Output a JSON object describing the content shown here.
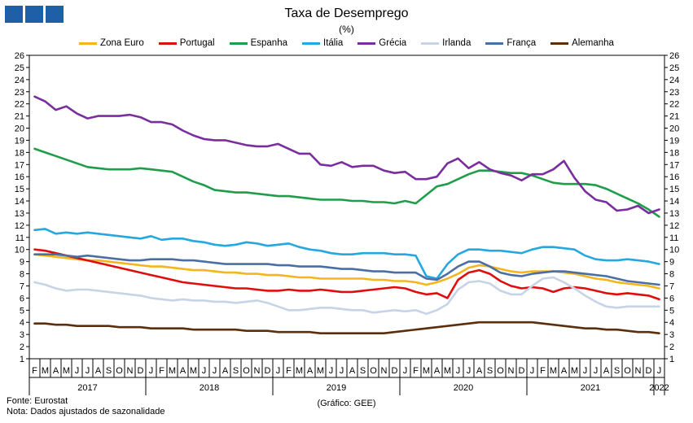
{
  "header": {
    "title": "Taxa de Desemprego",
    "subtitle": "(%)",
    "logo_color": "#1f5fa8"
  },
  "footer": {
    "source": "Fonte: Eurostat",
    "note": "Nota: Dados ajustados de sazonalidade",
    "credit": "(Gráfico: GEE)"
  },
  "chart_data": {
    "type": "line",
    "title": "Taxa de Desemprego",
    "subtitle": "(%)",
    "ylim": [
      1,
      26
    ],
    "yticks": [
      1,
      2,
      3,
      4,
      5,
      6,
      7,
      8,
      9,
      10,
      11,
      12,
      13,
      14,
      15,
      16,
      17,
      18,
      19,
      20,
      21,
      22,
      23,
      24,
      25,
      26
    ],
    "grid": false,
    "legend": "top",
    "month_labels": [
      "F",
      "M",
      "A",
      "M",
      "J",
      "J",
      "A",
      "S",
      "O",
      "N",
      "D",
      "J",
      "F",
      "M",
      "A",
      "M",
      "J",
      "J",
      "A",
      "S",
      "O",
      "N",
      "D",
      "J",
      "F",
      "M",
      "A",
      "M",
      "J",
      "J",
      "A",
      "S",
      "O",
      "N",
      "D",
      "J",
      "F",
      "M",
      "A",
      "M",
      "J",
      "J",
      "A",
      "S",
      "O",
      "N",
      "D",
      "J",
      "F",
      "M",
      "A",
      "M",
      "J",
      "J",
      "A",
      "S",
      "O",
      "N",
      "D",
      "J"
    ],
    "years": [
      {
        "label": "2017",
        "start": 0,
        "end": 10
      },
      {
        "label": "2018",
        "start": 11,
        "end": 22
      },
      {
        "label": "2019",
        "start": 23,
        "end": 34
      },
      {
        "label": "2020",
        "start": 35,
        "end": 46
      },
      {
        "label": "2021",
        "start": 47,
        "end": 58
      },
      {
        "label": "2022",
        "start": 59,
        "end": 59
      }
    ],
    "series": [
      {
        "name": "Zona Euro",
        "color": "#f5b51f",
        "values": [
          9.6,
          9.5,
          9.4,
          9.3,
          9.2,
          9.1,
          9.1,
          9.0,
          8.9,
          8.8,
          8.7,
          8.6,
          8.6,
          8.5,
          8.4,
          8.3,
          8.3,
          8.2,
          8.1,
          8.1,
          8.0,
          8.0,
          7.9,
          7.9,
          7.8,
          7.7,
          7.7,
          7.6,
          7.6,
          7.6,
          7.6,
          7.6,
          7.5,
          7.5,
          7.4,
          7.4,
          7.3,
          7.1,
          7.3,
          7.6,
          8.0,
          8.5,
          8.7,
          8.6,
          8.4,
          8.2,
          8.1,
          8.2,
          8.2,
          8.2,
          8.1,
          8.0,
          7.8,
          7.6,
          7.5,
          7.3,
          7.2,
          7.1,
          7.0,
          6.8
        ]
      },
      {
        "name": "Portugal",
        "color": "#e00d0d",
        "values": [
          10.0,
          9.9,
          9.7,
          9.5,
          9.3,
          9.1,
          8.9,
          8.7,
          8.5,
          8.3,
          8.1,
          7.9,
          7.7,
          7.5,
          7.3,
          7.2,
          7.1,
          7.0,
          6.9,
          6.8,
          6.8,
          6.7,
          6.6,
          6.6,
          6.7,
          6.6,
          6.6,
          6.7,
          6.6,
          6.5,
          6.5,
          6.6,
          6.7,
          6.8,
          6.9,
          6.8,
          6.5,
          6.3,
          6.4,
          6.0,
          7.5,
          8.1,
          8.3,
          8.0,
          7.4,
          7.0,
          6.8,
          6.9,
          6.8,
          6.5,
          6.8,
          6.9,
          6.8,
          6.6,
          6.4,
          6.3,
          6.4,
          6.3,
          6.2,
          5.9
        ]
      },
      {
        "name": "Espanha",
        "color": "#1f9d4a",
        "values": [
          18.3,
          18.0,
          17.7,
          17.4,
          17.1,
          16.8,
          16.7,
          16.6,
          16.6,
          16.6,
          16.7,
          16.6,
          16.5,
          16.4,
          16.0,
          15.6,
          15.3,
          14.9,
          14.8,
          14.7,
          14.7,
          14.6,
          14.5,
          14.4,
          14.4,
          14.3,
          14.2,
          14.1,
          14.1,
          14.1,
          14.0,
          14.0,
          13.9,
          13.9,
          13.8,
          14.0,
          13.8,
          14.5,
          15.2,
          15.4,
          15.8,
          16.2,
          16.5,
          16.5,
          16.4,
          16.3,
          16.3,
          16.1,
          15.8,
          15.5,
          15.4,
          15.4,
          15.4,
          15.3,
          15.0,
          14.6,
          14.2,
          13.8,
          13.3,
          12.7
        ]
      },
      {
        "name": "Itália",
        "color": "#25a7e0",
        "values": [
          11.6,
          11.7,
          11.3,
          11.4,
          11.3,
          11.4,
          11.3,
          11.2,
          11.1,
          11.0,
          10.9,
          11.1,
          10.8,
          10.9,
          10.9,
          10.7,
          10.6,
          10.4,
          10.3,
          10.4,
          10.6,
          10.5,
          10.3,
          10.4,
          10.5,
          10.2,
          10.0,
          9.9,
          9.7,
          9.6,
          9.6,
          9.7,
          9.7,
          9.7,
          9.6,
          9.6,
          9.5,
          7.8,
          7.6,
          8.8,
          9.6,
          10.0,
          10.0,
          9.9,
          9.9,
          9.8,
          9.7,
          10.0,
          10.2,
          10.2,
          10.1,
          10.0,
          9.5,
          9.2,
          9.1,
          9.1,
          9.2,
          9.1,
          9.0,
          8.8
        ]
      },
      {
        "name": "Grécia",
        "color": "#7a2e9e",
        "values": [
          22.6,
          22.2,
          21.5,
          21.8,
          21.2,
          20.8,
          21.0,
          21.0,
          21.0,
          21.1,
          20.9,
          20.5,
          20.5,
          20.3,
          19.8,
          19.4,
          19.1,
          19.0,
          19.0,
          18.8,
          18.6,
          18.5,
          18.5,
          18.7,
          18.3,
          17.9,
          17.9,
          17.0,
          16.9,
          17.2,
          16.8,
          16.9,
          16.9,
          16.5,
          16.3,
          16.4,
          15.8,
          15.8,
          16.0,
          17.1,
          17.5,
          16.7,
          17.2,
          16.6,
          16.3,
          16.1,
          15.7,
          16.2,
          16.2,
          16.6,
          17.3,
          15.9,
          14.8,
          14.1,
          13.9,
          13.2,
          13.3,
          13.6,
          13.0,
          13.3
        ]
      },
      {
        "name": "Irlanda",
        "color": "#c7d3e6",
        "values": [
          7.3,
          7.1,
          6.8,
          6.6,
          6.7,
          6.7,
          6.6,
          6.5,
          6.4,
          6.3,
          6.2,
          6.0,
          5.9,
          5.8,
          5.9,
          5.8,
          5.8,
          5.7,
          5.7,
          5.6,
          5.7,
          5.8,
          5.6,
          5.3,
          5.0,
          5.0,
          5.1,
          5.2,
          5.2,
          5.1,
          5.0,
          5.0,
          4.8,
          4.9,
          5.0,
          4.9,
          5.0,
          4.7,
          5.0,
          5.5,
          6.7,
          7.3,
          7.4,
          7.2,
          6.6,
          6.3,
          6.3,
          7.0,
          7.6,
          7.7,
          7.3,
          6.8,
          6.2,
          5.7,
          5.3,
          5.2,
          5.3,
          5.3,
          5.3,
          5.3
        ]
      },
      {
        "name": "França",
        "color": "#4a6fa5",
        "values": [
          9.6,
          9.6,
          9.6,
          9.5,
          9.4,
          9.5,
          9.4,
          9.3,
          9.2,
          9.1,
          9.1,
          9.2,
          9.2,
          9.2,
          9.1,
          9.1,
          9.0,
          8.9,
          8.8,
          8.8,
          8.8,
          8.8,
          8.8,
          8.7,
          8.7,
          8.6,
          8.6,
          8.6,
          8.5,
          8.4,
          8.4,
          8.3,
          8.2,
          8.2,
          8.1,
          8.1,
          8.1,
          7.6,
          7.5,
          8.0,
          8.6,
          9.0,
          9.0,
          8.6,
          8.1,
          7.9,
          7.8,
          8.0,
          8.1,
          8.2,
          8.2,
          8.1,
          8.0,
          7.9,
          7.8,
          7.6,
          7.4,
          7.3,
          7.2,
          7.1
        ]
      },
      {
        "name": "Alemanha",
        "color": "#5b2e0c",
        "values": [
          3.9,
          3.9,
          3.8,
          3.8,
          3.7,
          3.7,
          3.7,
          3.7,
          3.6,
          3.6,
          3.6,
          3.5,
          3.5,
          3.5,
          3.5,
          3.4,
          3.4,
          3.4,
          3.4,
          3.4,
          3.3,
          3.3,
          3.3,
          3.2,
          3.2,
          3.2,
          3.2,
          3.1,
          3.1,
          3.1,
          3.1,
          3.1,
          3.1,
          3.1,
          3.2,
          3.3,
          3.4,
          3.5,
          3.6,
          3.7,
          3.8,
          3.9,
          4.0,
          4.0,
          4.0,
          4.0,
          4.0,
          4.0,
          3.9,
          3.8,
          3.7,
          3.6,
          3.5,
          3.5,
          3.4,
          3.4,
          3.3,
          3.2,
          3.2,
          3.1
        ]
      }
    ]
  }
}
